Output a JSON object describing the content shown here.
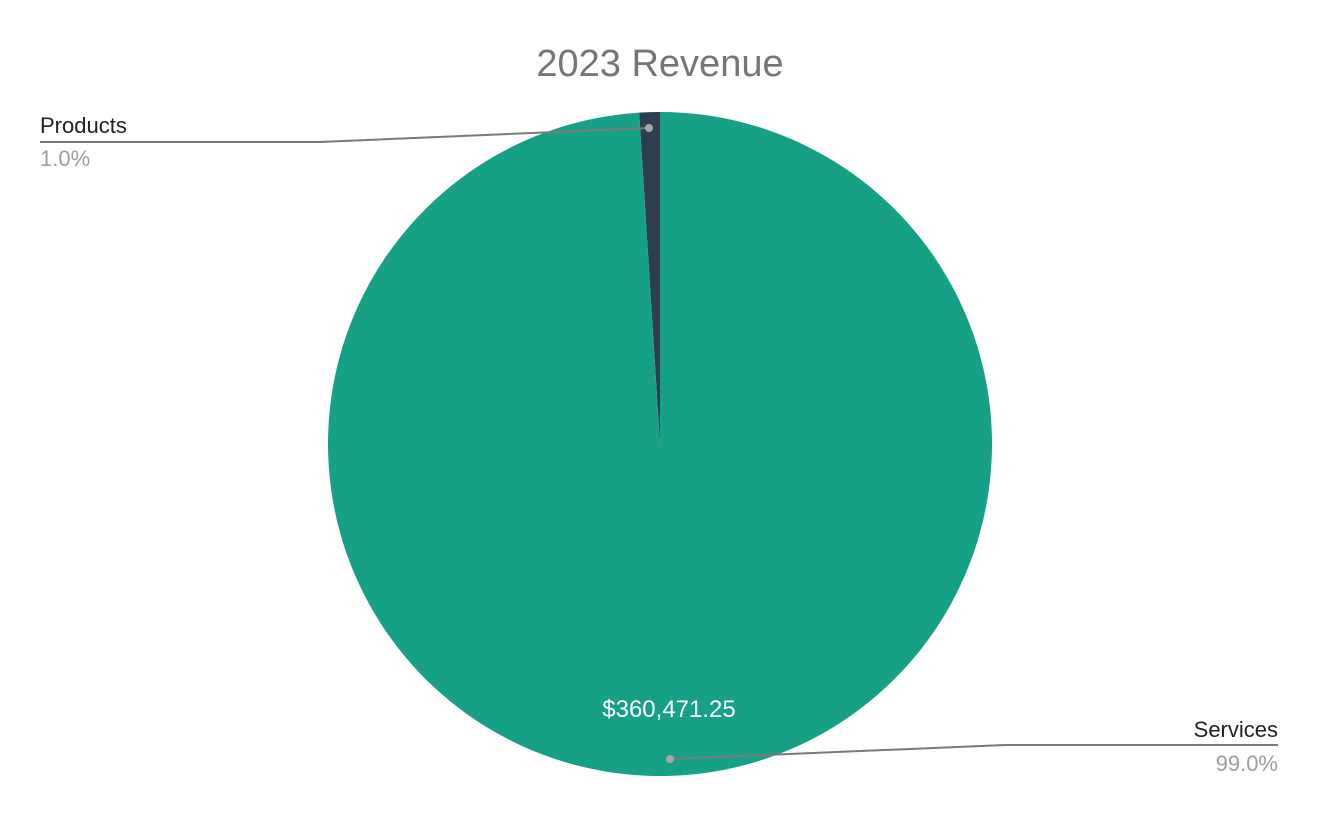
{
  "chart_data": {
    "type": "pie",
    "title": "2023 Revenue",
    "slices": [
      {
        "label": "Products",
        "percent": "1.0%",
        "share": 0.01,
        "color": "#2c3e50",
        "value_label": ""
      },
      {
        "label": "Services",
        "percent": "99.0%",
        "share": 0.99,
        "color": "#16a085",
        "value_label": "$360,471.25"
      }
    ]
  }
}
